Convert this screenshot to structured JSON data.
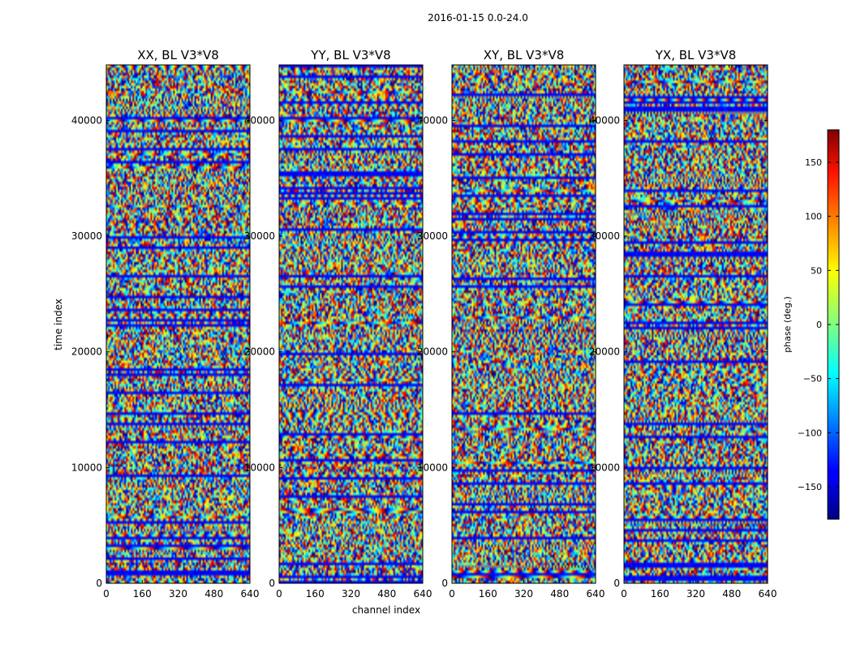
{
  "chart_data": {
    "type": "heatmap",
    "suptitle": "2016-01-15 0.0-24.0",
    "xlabel": "channel index",
    "ylabel": "time index",
    "xlim": [
      0,
      640
    ],
    "ylim": [
      0,
      44800
    ],
    "x_ticks": [
      0,
      160,
      320,
      480,
      640
    ],
    "y_ticks": [
      0,
      10000,
      20000,
      30000,
      40000
    ],
    "colorscale": "jet",
    "panels": [
      {
        "title": "XX, BL V3*V8",
        "pol": "XX"
      },
      {
        "title": "YY, BL V3*V8",
        "pol": "YY"
      },
      {
        "title": "XY, BL V3*V8",
        "pol": "XY"
      },
      {
        "title": "YX, BL V3*V8",
        "pol": "YX"
      }
    ],
    "colorbar": {
      "label": "phase (deg.)",
      "range": [
        -180,
        180
      ],
      "ticks": [
        -150,
        -100,
        -50,
        0,
        50,
        100,
        150
      ],
      "tick_labels": [
        "−150",
        "−100",
        "−50",
        "0",
        "50",
        "100",
        "150"
      ]
    }
  }
}
